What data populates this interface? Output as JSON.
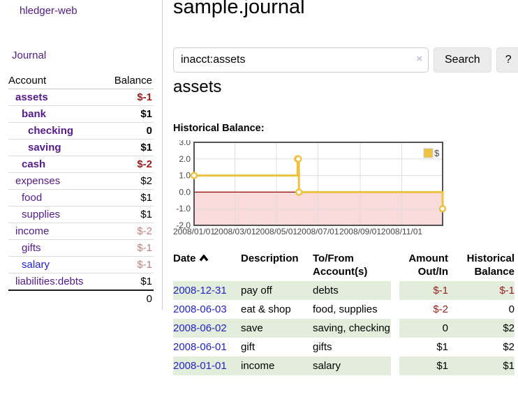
{
  "app": {
    "brand": "hledger-web"
  },
  "nav": {
    "journal": "Journal"
  },
  "sidebar": {
    "header": {
      "account": "Account",
      "balance": "Balance"
    },
    "accounts": [
      {
        "name": "assets",
        "indent": 1,
        "active": true,
        "link": "purple",
        "balance": "$-1",
        "bclass": "neg"
      },
      {
        "name": "bank",
        "indent": 2,
        "active": true,
        "link": "purple",
        "balance": "$1",
        "bclass": ""
      },
      {
        "name": "checking",
        "indent": 3,
        "active": true,
        "link": "purple",
        "balance": "0",
        "bclass": ""
      },
      {
        "name": "saving",
        "indent": 3,
        "active": true,
        "link": "purple",
        "balance": "$1",
        "bclass": ""
      },
      {
        "name": "cash",
        "indent": 2,
        "active": true,
        "link": "purple",
        "balance": "$-2",
        "bclass": "neg"
      },
      {
        "name": "expenses",
        "indent": 1,
        "active": false,
        "link": "purple",
        "balance": "$2",
        "bclass": ""
      },
      {
        "name": "food",
        "indent": 2,
        "active": false,
        "link": "purple",
        "balance": "$1",
        "bclass": ""
      },
      {
        "name": "supplies",
        "indent": 2,
        "active": false,
        "link": "purple",
        "balance": "$1",
        "bclass": ""
      },
      {
        "name": "income",
        "indent": 1,
        "active": false,
        "link": "purple",
        "balance": "$-2",
        "bclass": "neg-muted"
      },
      {
        "name": "gifts",
        "indent": 2,
        "active": false,
        "link": "purple",
        "balance": "$-1",
        "bclass": "neg-muted"
      },
      {
        "name": "salary",
        "indent": 2,
        "active": false,
        "link": "blue",
        "balance": "$-1",
        "bclass": "neg-muted"
      },
      {
        "name": "liabilities:debts",
        "indent": 1,
        "active": false,
        "link": "purple",
        "balance": "$1",
        "bclass": ""
      }
    ],
    "total": "0"
  },
  "main": {
    "title": "sample.journal",
    "search": {
      "value": "inacct:assets",
      "clear": "×",
      "search_button": "Search",
      "help_button": "?"
    },
    "heading": "assets",
    "chart_label": "Historical Balance:"
  },
  "chart_data": {
    "type": "line",
    "step": true,
    "title": "Historical Balance",
    "series": [
      {
        "name": "$",
        "color": "#EDC240",
        "points": [
          [
            "2008-01-01",
            1
          ],
          [
            "2008-06-01",
            2
          ],
          [
            "2008-06-02",
            2
          ],
          [
            "2008-06-03",
            0
          ],
          [
            "2008-12-31",
            -1
          ]
        ]
      }
    ],
    "x_ticks": [
      "2008/01/01",
      "2008/03/01",
      "2008/05/01",
      "2008/07/01",
      "2008/09/01",
      "2008/11/01"
    ],
    "y_ticks": [
      3,
      2,
      1,
      0,
      -1,
      -2
    ],
    "xlim": [
      "2008-01-01",
      "2008-12-31"
    ],
    "ylim": [
      -2,
      3
    ],
    "grid": true,
    "legend_position": "top-right",
    "marker": "open-circle",
    "negative_region_color": "#fadbdb",
    "zero_line_color": "#8b0000",
    "grid_color": "#dedede",
    "border_color": "#545454",
    "tick_label_color": "#474747"
  },
  "table": {
    "headers": {
      "date": "Date",
      "description": "Description",
      "tofrom": "To/From Account(s)",
      "amount": "Amount Out/In",
      "balance": "Historical Balance"
    },
    "rows": [
      {
        "date": "2008-12-31",
        "description": "pay off",
        "accounts": [
          "debts"
        ],
        "amount": "$-1",
        "amount_class": "neg",
        "balance": "$-1",
        "balance_class": "neg"
      },
      {
        "date": "2008-06-03",
        "description": "eat & shop",
        "accounts": [
          "food",
          "supplies"
        ],
        "amount": "$-2",
        "amount_class": "neg",
        "balance": "0",
        "balance_class": ""
      },
      {
        "date": "2008-06-02",
        "description": "save",
        "accounts": [
          "saving",
          "checking"
        ],
        "amount": "0",
        "amount_class": "",
        "balance": "$2",
        "balance_class": ""
      },
      {
        "date": "2008-06-01",
        "description": "gift",
        "accounts": [
          "gifts"
        ],
        "amount": "$1",
        "amount_class": "",
        "balance": "$2",
        "balance_class": ""
      },
      {
        "date": "2008-01-01",
        "description": "income",
        "accounts": [
          "salary"
        ],
        "amount": "$1",
        "amount_class": "",
        "balance": "$1",
        "balance_class": ""
      }
    ]
  }
}
